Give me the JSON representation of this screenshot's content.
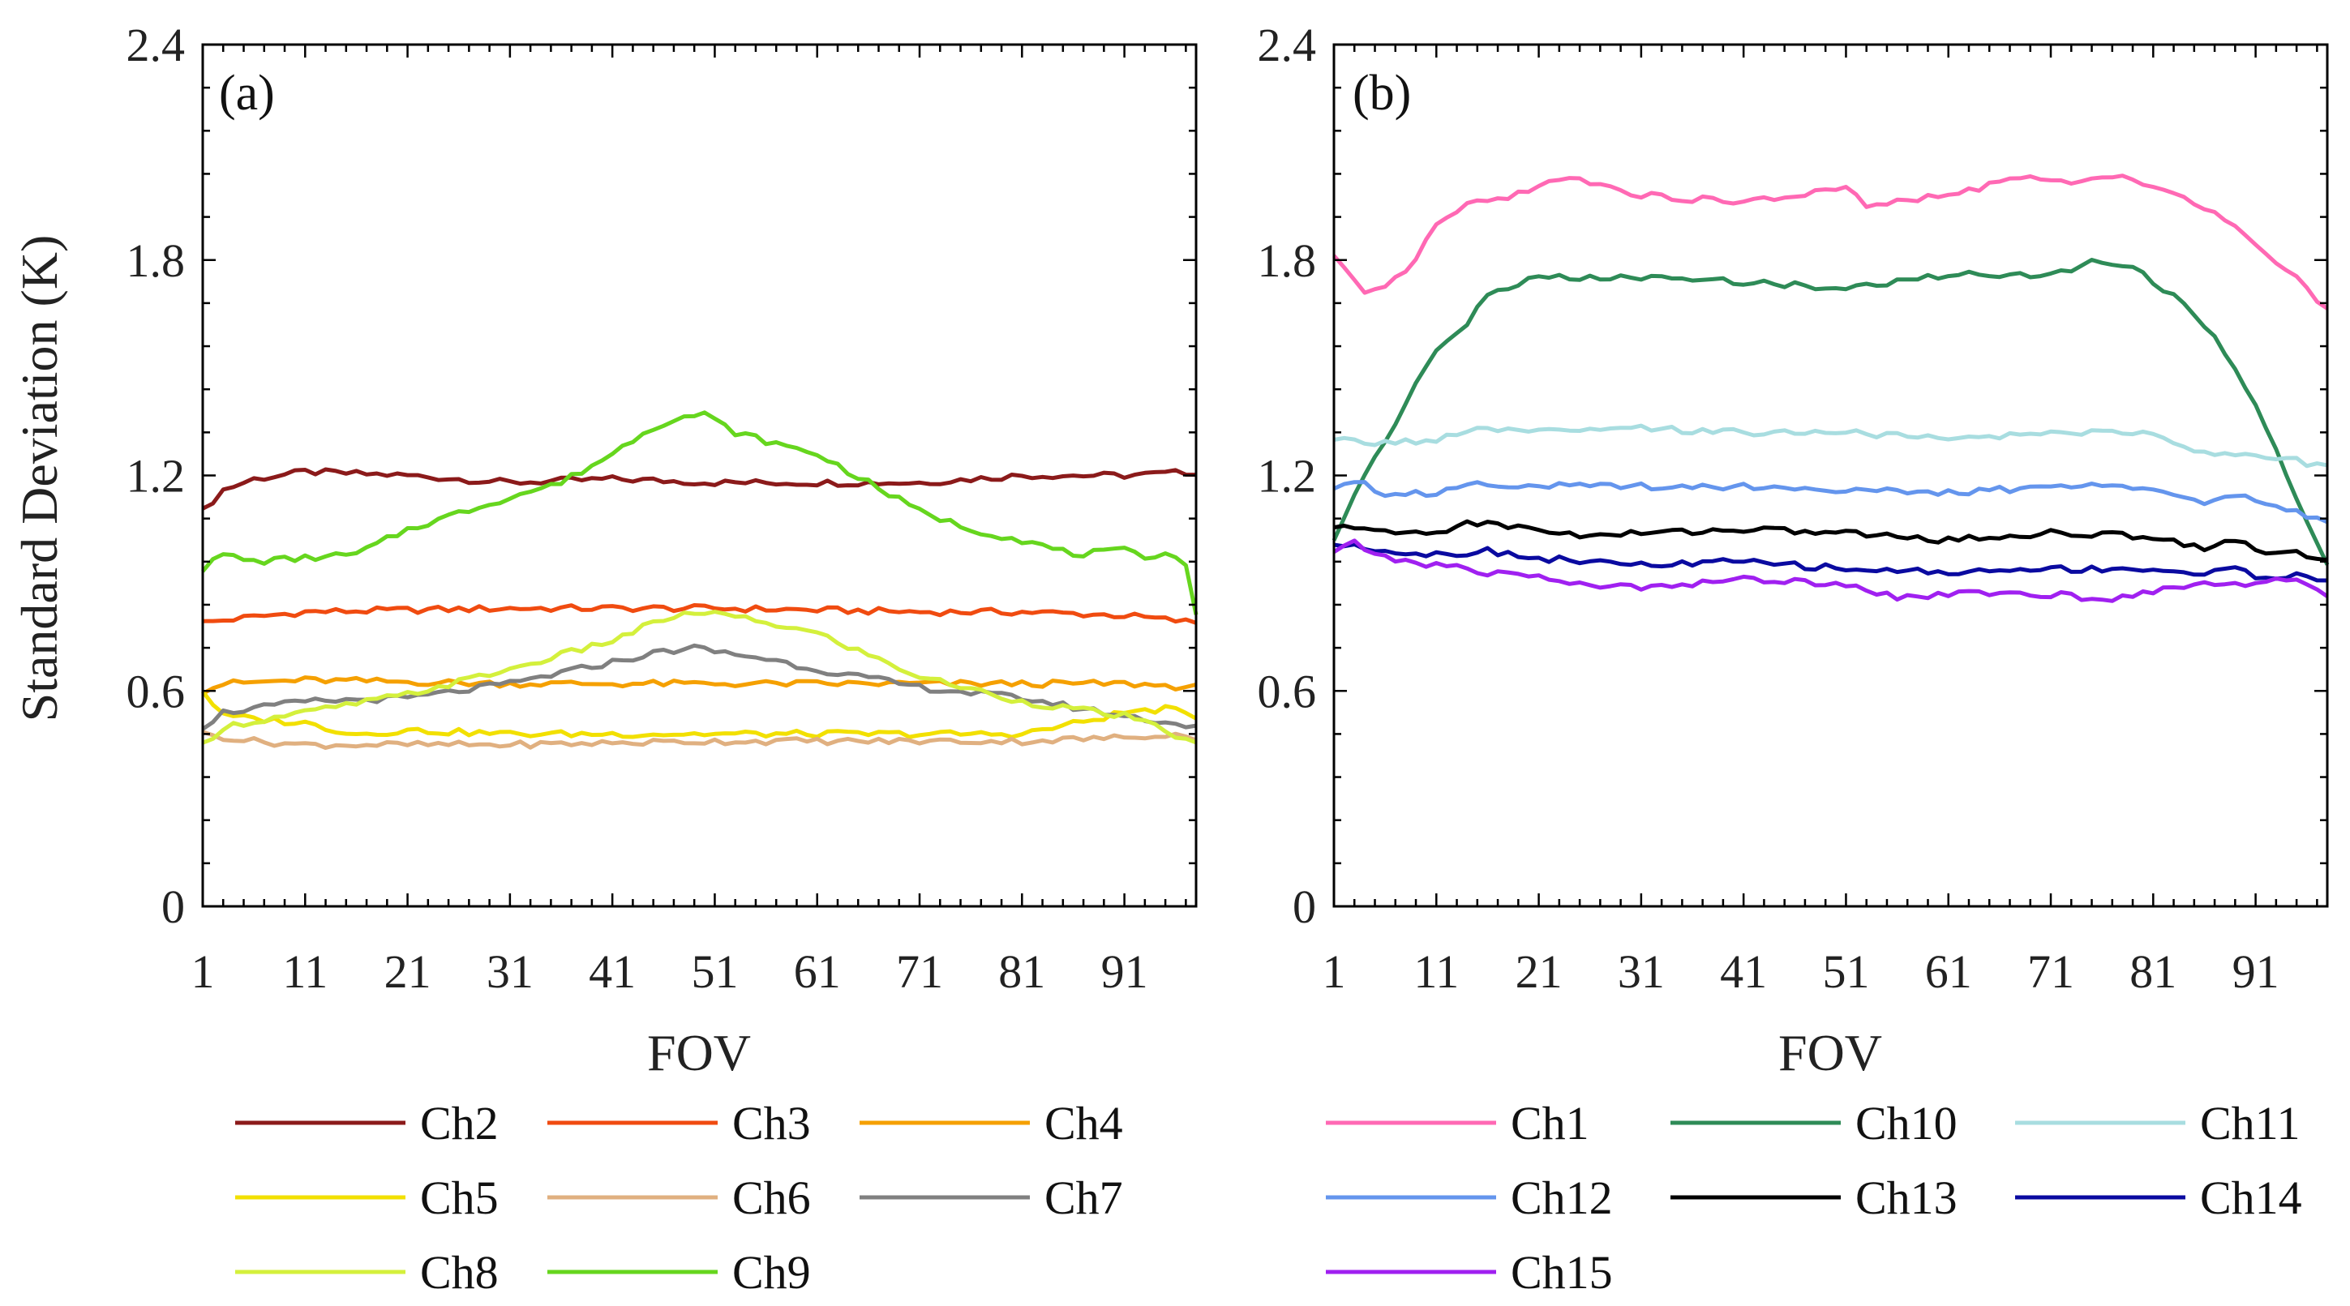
{
  "chart_data": [
    {
      "type": "line",
      "panel_label": "(a)",
      "xlabel": "FOV",
      "ylabel": "Standard Deviation (K)",
      "xlim": [
        1,
        98
      ],
      "ylim": [
        0,
        2.4
      ],
      "xticks": [
        1,
        11,
        21,
        31,
        41,
        51,
        61,
        71,
        81,
        91
      ],
      "yticks": [
        0,
        0.6,
        1.2,
        1.8,
        2.4
      ],
      "ytick_labels": [
        "0",
        "0.6",
        "1.2",
        "1.8",
        "2.4"
      ],
      "series": [
        {
          "name": "Ch2",
          "color": "#8B1A1A",
          "keypoints": [
            [
              1,
              1.1
            ],
            [
              3,
              1.16
            ],
            [
              6,
              1.19
            ],
            [
              11,
              1.21
            ],
            [
              21,
              1.2
            ],
            [
              31,
              1.18
            ],
            [
              41,
              1.19
            ],
            [
              51,
              1.18
            ],
            [
              61,
              1.18
            ],
            [
              71,
              1.18
            ],
            [
              81,
              1.2
            ],
            [
              91,
              1.2
            ],
            [
              98,
              1.21
            ]
          ]
        },
        {
          "name": "Ch3",
          "color": "#F04B10",
          "keypoints": [
            [
              1,
              0.79
            ],
            [
              4,
              0.8
            ],
            [
              11,
              0.82
            ],
            [
              31,
              0.83
            ],
            [
              51,
              0.83
            ],
            [
              71,
              0.82
            ],
            [
              81,
              0.82
            ],
            [
              91,
              0.81
            ],
            [
              98,
              0.79
            ]
          ]
        },
        {
          "name": "Ch4",
          "color": "#F5A000",
          "keypoints": [
            [
              1,
              0.6
            ],
            [
              3,
              0.62
            ],
            [
              11,
              0.63
            ],
            [
              31,
              0.62
            ],
            [
              51,
              0.62
            ],
            [
              71,
              0.62
            ],
            [
              91,
              0.62
            ],
            [
              98,
              0.61
            ]
          ]
        },
        {
          "name": "Ch5",
          "color": "#F2E000",
          "keypoints": [
            [
              1,
              0.6
            ],
            [
              3,
              0.53
            ],
            [
              11,
              0.51
            ],
            [
              16,
              0.48
            ],
            [
              21,
              0.49
            ],
            [
              31,
              0.48
            ],
            [
              51,
              0.48
            ],
            [
              71,
              0.48
            ],
            [
              81,
              0.48
            ],
            [
              88,
              0.52
            ],
            [
              91,
              0.54
            ],
            [
              95,
              0.55
            ],
            [
              98,
              0.53
            ]
          ]
        },
        {
          "name": "Ch6",
          "color": "#E0B080",
          "keypoints": [
            [
              1,
              0.48
            ],
            [
              6,
              0.46
            ],
            [
              11,
              0.45
            ],
            [
              21,
              0.45
            ],
            [
              31,
              0.45
            ],
            [
              51,
              0.46
            ],
            [
              71,
              0.46
            ],
            [
              81,
              0.46
            ],
            [
              91,
              0.47
            ],
            [
              95,
              0.48
            ],
            [
              98,
              0.47
            ]
          ]
        },
        {
          "name": "Ch7",
          "color": "#808080",
          "keypoints": [
            [
              1,
              0.5
            ],
            [
              3,
              0.54
            ],
            [
              11,
              0.57
            ],
            [
              21,
              0.58
            ],
            [
              31,
              0.62
            ],
            [
              41,
              0.68
            ],
            [
              46,
              0.71
            ],
            [
              49,
              0.72
            ],
            [
              51,
              0.71
            ],
            [
              56,
              0.69
            ],
            [
              61,
              0.66
            ],
            [
              71,
              0.61
            ],
            [
              81,
              0.58
            ],
            [
              91,
              0.53
            ],
            [
              98,
              0.5
            ]
          ]
        },
        {
          "name": "Ch8",
          "color": "#D4F03C",
          "keypoints": [
            [
              1,
              0.45
            ],
            [
              3,
              0.5
            ],
            [
              11,
              0.54
            ],
            [
              21,
              0.59
            ],
            [
              31,
              0.66
            ],
            [
              41,
              0.74
            ],
            [
              46,
              0.8
            ],
            [
              50,
              0.82
            ],
            [
              56,
              0.79
            ],
            [
              61,
              0.76
            ],
            [
              66,
              0.7
            ],
            [
              71,
              0.64
            ],
            [
              81,
              0.57
            ],
            [
              91,
              0.53
            ],
            [
              95,
              0.49
            ],
            [
              98,
              0.45
            ]
          ]
        },
        {
          "name": "Ch9",
          "color": "#66D61E",
          "keypoints": [
            [
              1,
              0.94
            ],
            [
              3,
              0.98
            ],
            [
              6,
              0.96
            ],
            [
              11,
              0.97
            ],
            [
              16,
              0.98
            ],
            [
              21,
              1.05
            ],
            [
              31,
              1.14
            ],
            [
              36,
              1.18
            ],
            [
              41,
              1.26
            ],
            [
              44,
              1.32
            ],
            [
              47,
              1.36
            ],
            [
              50,
              1.37
            ],
            [
              53,
              1.32
            ],
            [
              58,
              1.28
            ],
            [
              61,
              1.26
            ],
            [
              66,
              1.18
            ],
            [
              71,
              1.1
            ],
            [
              76,
              1.05
            ],
            [
              81,
              1.02
            ],
            [
              86,
              0.98
            ],
            [
              91,
              0.99
            ],
            [
              93,
              0.97
            ],
            [
              95,
              0.99
            ],
            [
              97,
              0.95
            ],
            [
              98,
              0.82
            ]
          ]
        }
      ]
    },
    {
      "type": "line",
      "panel_label": "(b)",
      "xlabel": "FOV",
      "ylabel": "",
      "xlim": [
        1,
        98
      ],
      "ylim": [
        0,
        2.4
      ],
      "xticks": [
        1,
        11,
        21,
        31,
        41,
        51,
        61,
        71,
        81,
        91
      ],
      "yticks": [
        0,
        0.6,
        1.2,
        1.8,
        2.4
      ],
      "ytick_labels": [
        "0",
        "0.6",
        "1.2",
        "1.8",
        "2.4"
      ],
      "series": [
        {
          "name": "Ch1",
          "color": "#FF69B4",
          "keypoints": [
            [
              1,
              1.81
            ],
            [
              4,
              1.7
            ],
            [
              6,
              1.72
            ],
            [
              9,
              1.8
            ],
            [
              11,
              1.9
            ],
            [
              14,
              1.95
            ],
            [
              21,
              2.0
            ],
            [
              23,
              2.03
            ],
            [
              26,
              2.02
            ],
            [
              31,
              1.98
            ],
            [
              41,
              1.96
            ],
            [
              51,
              2.0
            ],
            [
              53,
              1.95
            ],
            [
              61,
              1.98
            ],
            [
              68,
              2.03
            ],
            [
              71,
              2.02
            ],
            [
              75,
              2.02
            ],
            [
              79,
              2.03
            ],
            [
              86,
              1.95
            ],
            [
              91,
              1.85
            ],
            [
              95,
              1.75
            ],
            [
              98,
              1.66
            ]
          ]
        },
        {
          "name": "Ch10",
          "color": "#2E8B57",
          "keypoints": [
            [
              1,
              1.02
            ],
            [
              3,
              1.15
            ],
            [
              6,
              1.3
            ],
            [
              9,
              1.45
            ],
            [
              11,
              1.55
            ],
            [
              14,
              1.62
            ],
            [
              16,
              1.71
            ],
            [
              21,
              1.75
            ],
            [
              31,
              1.75
            ],
            [
              41,
              1.74
            ],
            [
              51,
              1.72
            ],
            [
              61,
              1.76
            ],
            [
              71,
              1.76
            ],
            [
              76,
              1.8
            ],
            [
              79,
              1.78
            ],
            [
              83,
              1.7
            ],
            [
              86,
              1.62
            ],
            [
              89,
              1.5
            ],
            [
              91,
              1.4
            ],
            [
              94,
              1.2
            ],
            [
              96,
              1.08
            ],
            [
              98,
              0.95
            ]
          ]
        },
        {
          "name": "Ch11",
          "color": "#A8DDE0",
          "keypoints": [
            [
              1,
              1.3
            ],
            [
              6,
              1.29
            ],
            [
              11,
              1.3
            ],
            [
              16,
              1.33
            ],
            [
              21,
              1.32
            ],
            [
              31,
              1.33
            ],
            [
              41,
              1.32
            ],
            [
              51,
              1.32
            ],
            [
              61,
              1.3
            ],
            [
              71,
              1.32
            ],
            [
              81,
              1.32
            ],
            [
              86,
              1.26
            ],
            [
              91,
              1.26
            ],
            [
              95,
              1.24
            ],
            [
              98,
              1.22
            ]
          ]
        },
        {
          "name": "Ch12",
          "color": "#6495ED",
          "keypoints": [
            [
              1,
              1.17
            ],
            [
              3,
              1.19
            ],
            [
              6,
              1.15
            ],
            [
              11,
              1.15
            ],
            [
              14,
              1.18
            ],
            [
              21,
              1.17
            ],
            [
              31,
              1.17
            ],
            [
              41,
              1.17
            ],
            [
              51,
              1.16
            ],
            [
              61,
              1.15
            ],
            [
              71,
              1.17
            ],
            [
              81,
              1.17
            ],
            [
              86,
              1.12
            ],
            [
              89,
              1.15
            ],
            [
              91,
              1.12
            ],
            [
              95,
              1.1
            ],
            [
              98,
              1.07
            ]
          ]
        },
        {
          "name": "Ch13",
          "color": "#000000",
          "keypoints": [
            [
              1,
              1.05
            ],
            [
              3,
              1.06
            ],
            [
              6,
              1.04
            ],
            [
              11,
              1.04
            ],
            [
              14,
              1.07
            ],
            [
              21,
              1.05
            ],
            [
              26,
              1.03
            ],
            [
              31,
              1.04
            ],
            [
              41,
              1.05
            ],
            [
              51,
              1.04
            ],
            [
              61,
              1.02
            ],
            [
              71,
              1.04
            ],
            [
              81,
              1.03
            ],
            [
              86,
              1.0
            ],
            [
              89,
              1.02
            ],
            [
              91,
              0.99
            ],
            [
              95,
              0.99
            ],
            [
              98,
              0.96
            ]
          ]
        },
        {
          "name": "Ch14",
          "color": "#0A0AA0",
          "keypoints": [
            [
              1,
              1.0
            ],
            [
              3,
              1.01
            ],
            [
              6,
              0.99
            ],
            [
              11,
              0.98
            ],
            [
              16,
              0.99
            ],
            [
              21,
              0.97
            ],
            [
              31,
              0.95
            ],
            [
              41,
              0.96
            ],
            [
              51,
              0.94
            ],
            [
              61,
              0.93
            ],
            [
              71,
              0.94
            ],
            [
              81,
              0.94
            ],
            [
              86,
              0.92
            ],
            [
              89,
              0.95
            ],
            [
              91,
              0.92
            ],
            [
              95,
              0.92
            ],
            [
              98,
              0.9
            ]
          ]
        },
        {
          "name": "Ch15",
          "color": "#A020F0",
          "keypoints": [
            [
              1,
              0.99
            ],
            [
              3,
              1.01
            ],
            [
              6,
              0.97
            ],
            [
              11,
              0.95
            ],
            [
              16,
              0.93
            ],
            [
              21,
              0.92
            ],
            [
              26,
              0.89
            ],
            [
              31,
              0.89
            ],
            [
              41,
              0.91
            ],
            [
              51,
              0.9
            ],
            [
              56,
              0.86
            ],
            [
              61,
              0.87
            ],
            [
              71,
              0.87
            ],
            [
              76,
              0.85
            ],
            [
              81,
              0.88
            ],
            [
              86,
              0.9
            ],
            [
              91,
              0.9
            ],
            [
              95,
              0.91
            ],
            [
              98,
              0.87
            ]
          ]
        }
      ]
    }
  ]
}
